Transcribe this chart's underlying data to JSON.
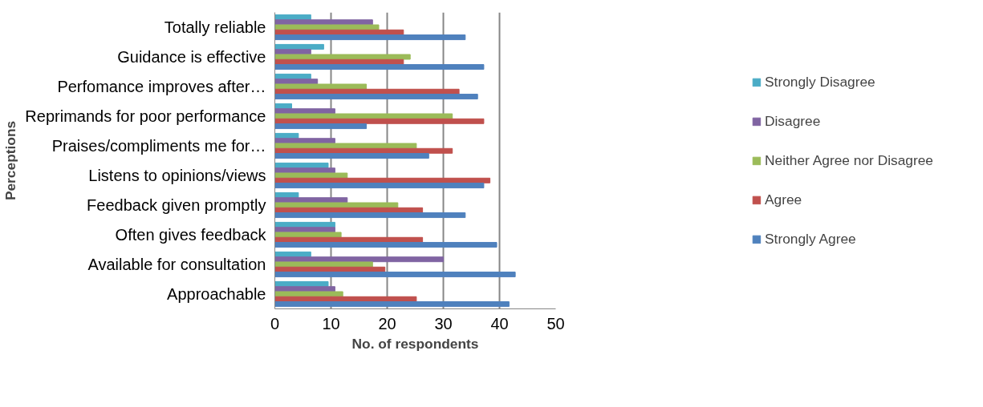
{
  "chart_data": {
    "type": "bar",
    "orientation": "horizontal",
    "xlabel": "No. of respondents",
    "ylabel": "Perceptions",
    "categories": [
      "Totally reliable",
      "Guidance is effective",
      "Perfomance improves after…",
      "Reprimands for poor performance",
      "Praises/compliments me for…",
      "Listens to opinions/views",
      "Feedback given promptly",
      "Often gives feedback",
      "Available for consultation",
      "Approachable"
    ],
    "series": [
      {
        "name": "Strongly Disagree",
        "color": "#4bacc6",
        "values": [
          6.4,
          8.7,
          6.4,
          3.0,
          4.2,
          9.5,
          4.2,
          10.7,
          6.4,
          9.5
        ]
      },
      {
        "name": "Disagree",
        "color": "#8064a2",
        "values": [
          17.4,
          6.4,
          7.6,
          10.7,
          10.7,
          10.7,
          12.9,
          10.7,
          30.0,
          10.7
        ]
      },
      {
        "name": "Neither Agree nor Disagree",
        "color": "#9bbb59",
        "values": [
          18.5,
          24.1,
          16.3,
          31.6,
          25.2,
          12.9,
          21.9,
          11.8,
          17.4,
          12.1
        ]
      },
      {
        "name": "Agree",
        "color": "#c0504d",
        "values": [
          22.9,
          22.9,
          32.8,
          37.2,
          31.6,
          38.3,
          26.3,
          26.3,
          19.6,
          25.2
        ]
      },
      {
        "name": "Strongly Agree",
        "color": "#4f81bd",
        "values": [
          33.9,
          37.2,
          36.1,
          16.3,
          27.4,
          37.2,
          33.9,
          39.5,
          42.8,
          41.7
        ]
      }
    ],
    "xlim": [
      0,
      50
    ],
    "xticks": [
      0,
      10,
      20,
      30,
      40,
      50
    ],
    "grid": "x",
    "legend": "right"
  }
}
